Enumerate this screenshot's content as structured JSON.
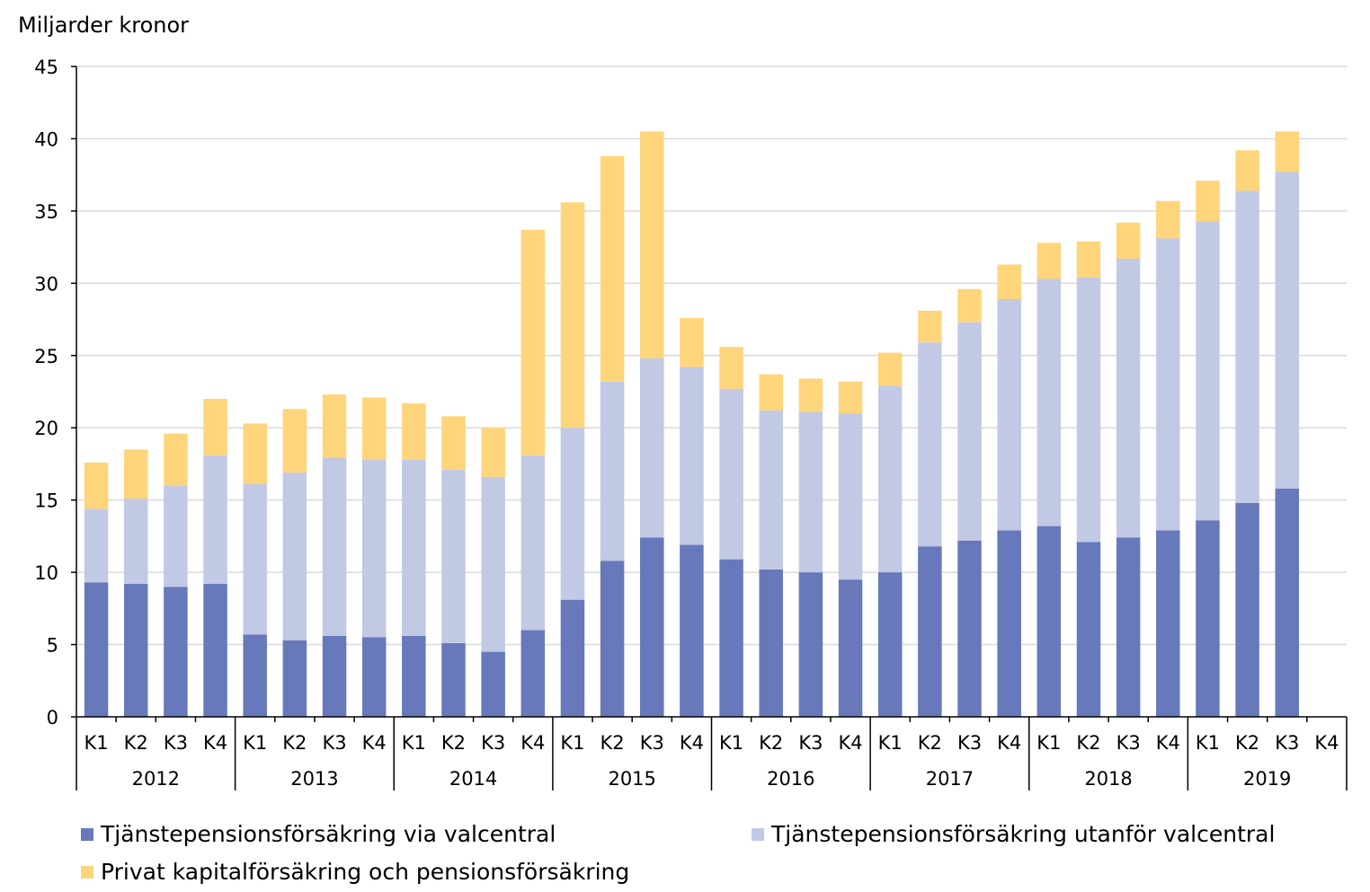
{
  "chart_data": {
    "type": "bar",
    "stacked": true,
    "title": "",
    "ylabel": "Miljarder kronor",
    "xlabel": "",
    "ylim": [
      0,
      45
    ],
    "yticks": [
      0,
      5,
      10,
      15,
      20,
      25,
      30,
      35,
      40,
      45
    ],
    "grid": true,
    "legend_position": "bottom",
    "years": [
      "2012",
      "2013",
      "2014",
      "2015",
      "2016",
      "2017",
      "2018",
      "2019"
    ],
    "quarters": [
      "K1",
      "K2",
      "K3",
      "K4"
    ],
    "series": [
      {
        "name": "Tjänstepensionsförsäkring via valcentral",
        "color": "#6779BB",
        "values": [
          9.3,
          9.2,
          9.0,
          9.2,
          5.7,
          5.3,
          5.6,
          5.5,
          5.6,
          5.1,
          4.5,
          6.0,
          8.1,
          10.8,
          12.4,
          11.9,
          10.9,
          10.2,
          10.0,
          9.5,
          10.0,
          11.8,
          12.2,
          12.9,
          13.2,
          12.1,
          12.4,
          12.9,
          13.6,
          14.8,
          15.8,
          null
        ]
      },
      {
        "name": "Tjänstepensionsförsäkring utanför valcentral",
        "color": "#C2C9E5",
        "values": [
          5.1,
          5.9,
          7.0,
          8.9,
          10.4,
          11.6,
          12.3,
          12.3,
          12.2,
          12.0,
          12.1,
          12.1,
          11.9,
          12.4,
          12.4,
          12.3,
          11.8,
          11.0,
          11.1,
          11.5,
          12.9,
          14.1,
          15.1,
          16.0,
          17.1,
          18.3,
          19.3,
          20.2,
          20.7,
          21.6,
          21.9,
          null
        ]
      },
      {
        "name": "Privat kapitalförsäkring och pensionsförsäkring",
        "color": "#FFD57C",
        "values": [
          3.2,
          3.4,
          3.6,
          3.9,
          4.2,
          4.4,
          4.4,
          4.3,
          3.9,
          3.7,
          3.4,
          15.6,
          15.6,
          15.6,
          15.7,
          3.4,
          2.9,
          2.5,
          2.3,
          2.2,
          2.3,
          2.2,
          2.3,
          2.4,
          2.5,
          2.5,
          2.5,
          2.6,
          2.8,
          2.8,
          2.8,
          null
        ]
      }
    ]
  }
}
